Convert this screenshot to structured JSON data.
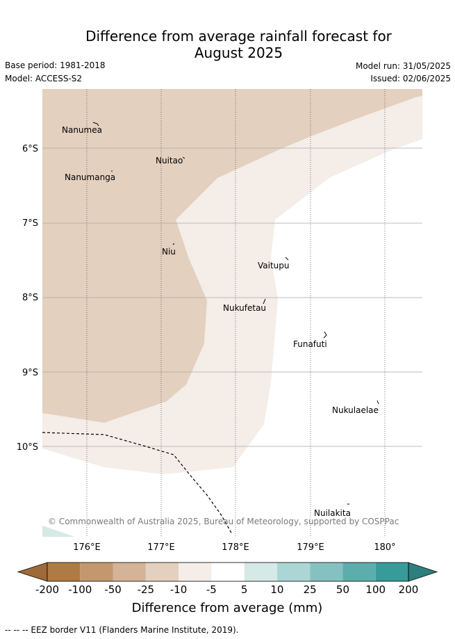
{
  "title_line1": "Difference from average rainfall forecast for",
  "title_line2": "August 2025",
  "base_period": "Base period: 1981-2018",
  "model": "Model: ACCESS-S2",
  "model_run": "Model run: 31/05/2025",
  "issued": "Issued: 02/06/2025",
  "credit": "© Commonwealth of Australia 2025, Bureau of Meteorology, supported by COSPPac",
  "lat_ticks": [
    "6°S",
    "7°S",
    "8°S",
    "9°S",
    "10°S"
  ],
  "lon_ticks": [
    "176°E",
    "177°E",
    "178°E",
    "179°E",
    "180°"
  ],
  "places": [
    "Nanumea",
    "Nuitao",
    "Nanumanga",
    "Niu",
    "Vaitupu",
    "Nukufetau",
    "Funafuti",
    "Nukulaelae",
    "Nuilakita"
  ],
  "colorbar": {
    "title": "Difference from average (mm)",
    "labels": [
      "-200",
      "-100",
      "-50",
      "-25",
      "-10",
      "-5",
      "5",
      "10",
      "25",
      "50",
      "100",
      "200"
    ],
    "colors": [
      "#9f6a3a",
      "#b07a44",
      "#c4986f",
      "#d4b396",
      "#e3d0bf",
      "#f4ede8",
      "#ffffff",
      "#d5e9e7",
      "#acd6d6",
      "#85c1c0",
      "#5caeac",
      "#379b99",
      "#2d7f7e"
    ]
  },
  "legend_note": "--  --  -- EEZ border V11 (Flanders Marine Institute, 2019)."
}
